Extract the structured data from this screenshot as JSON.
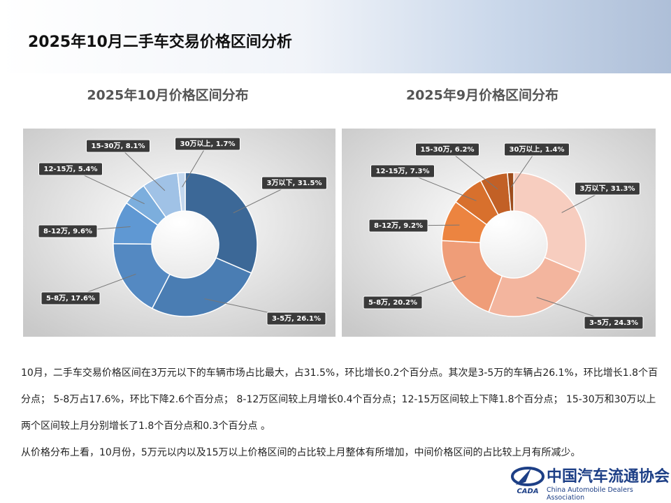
{
  "title": "2025年10月二手车交易价格区间分析",
  "chart_data": [
    {
      "type": "pie",
      "title": "2025年10月价格区间分布",
      "values": [
        31.5,
        26.1,
        17.6,
        9.6,
        5.4,
        8.1,
        1.7
      ],
      "value_labels": [
        "3万以下, 31.5%",
        "3-5万, 26.1%",
        "5-8万, 17.6%",
        "8-12万, 9.6%",
        "12-15万, 5.4%",
        "15-30万, 8.1%",
        "30万以上, 1.7%"
      ],
      "colors": [
        "#3c6897",
        "#4a7db3",
        "#5489c2",
        "#5f98d3",
        "#7caedd",
        "#a0c2e6",
        "#c3d8ef"
      ]
    },
    {
      "type": "pie",
      "title": "2025年9月价格区间分布",
      "values": [
        31.3,
        24.3,
        20.2,
        9.2,
        7.3,
        6.2,
        1.4
      ],
      "value_labels": [
        "3万以下, 31.3%",
        "3-5万, 24.3%",
        "5-8万, 20.2%",
        "8-12万, 9.2%",
        "12-15万, 7.3%",
        "15-30万, 6.2%",
        "30万以上, 1.4%"
      ],
      "colors": [
        "#f7cdbf",
        "#f3b59e",
        "#ef9d78",
        "#ec8440",
        "#d8702d",
        "#c26026",
        "#9e4d1d"
      ]
    }
  ],
  "paragraphs": [
    "10月，二手车交易价格区间在3万元以下的车辆市场占比最大，占31.5%，环比增长0.2个百分点。其次是3-5万的车辆占26.1%，环比增长1.8个百分点； 5-8万占17.6%，环比下降2.6个百分点； 8-12万区间较上月增长0.4个百分点；12-15万区间较上下降1.8个百分点； 15-30万和30万以上两个区间较上月分别增长了1.8个百分点和0.3个百分点 。",
    "从价格分布上看，10月份，5万元以内以及15万以上价格区间的占比较上月整体有所增加，中间价格区间的占比较上月有所减少。"
  ],
  "logo": {
    "mark": "CADA",
    "name": "中国汽车流通协会",
    "name_en": "China Automobile Dealers Association"
  }
}
